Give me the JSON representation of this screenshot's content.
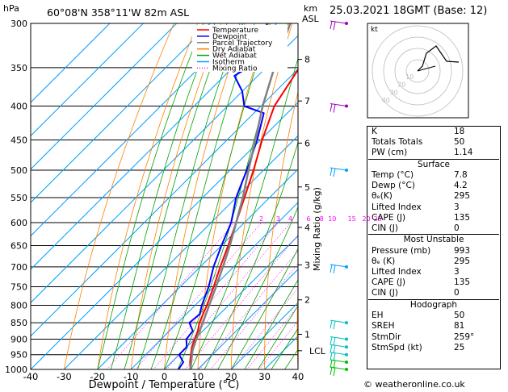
{
  "header": {
    "pressure_unit": "hPa",
    "location": "60°08'N  358°11'W  82m  ASL",
    "height_unit": "km",
    "height_unit2": "ASL",
    "datetime": "25.03.2021  18GMT  (Base: 12)"
  },
  "footer": {
    "copyright": "© weatheronline.co.uk"
  },
  "chart_data": {
    "type": "line",
    "title": "",
    "xlabel": "Dewpoint / Temperature (°C)",
    "ylabel_right": "Mixing Ratio (g/kg)",
    "xlim": [
      -40,
      40
    ],
    "ylim": [
      1000,
      300
    ],
    "y_scale": "log",
    "x_ticks": [
      -40,
      -30,
      -20,
      -10,
      0,
      10,
      20,
      30,
      40
    ],
    "y_ticks": [
      300,
      350,
      400,
      450,
      500,
      550,
      600,
      650,
      700,
      750,
      800,
      850,
      900,
      950,
      1000
    ],
    "km_ticks": [
      {
        "label": "8",
        "p": 340
      },
      {
        "label": "7",
        "p": 393
      },
      {
        "label": "6",
        "p": 455
      },
      {
        "label": "5",
        "p": 530
      },
      {
        "label": "4",
        "p": 610
      },
      {
        "label": "3",
        "p": 695
      },
      {
        "label": "2",
        "p": 785
      },
      {
        "label": "1",
        "p": 885
      },
      {
        "label": "LCL",
        "p": 937
      }
    ],
    "mixing_ratio_labels": [
      "2",
      "3",
      "4",
      "6",
      "8",
      "10",
      "15",
      "20",
      "25"
    ],
    "legend": [
      "Temperature",
      "Dewpoint",
      "Parcel Trajectory",
      "Dry Adiabat",
      "Wet Adiabat",
      "Isotherm",
      "Mixing Ratio"
    ],
    "legend_colors": [
      "#ff0000",
      "#0000ff",
      "#808080",
      "#ff8000",
      "#00a000",
      "#00a0ff",
      "#ff00ff"
    ],
    "series": [
      {
        "name": "Temperature",
        "p": [
          1000,
          975,
          950,
          925,
          900,
          875,
          850,
          800,
          750,
          700,
          650,
          600,
          550,
          500,
          450,
          400,
          350,
          300
        ],
        "t": [
          7.8,
          5.5,
          3.5,
          1.5,
          0.0,
          -1.5,
          -3.5,
          -6.5,
          -10.0,
          -14.0,
          -18.0,
          -22.5,
          -27.5,
          -33.0,
          -39.5,
          -46.0,
          -50.0,
          -54.0
        ]
      },
      {
        "name": "Dewpoint",
        "p": [
          1000,
          975,
          950,
          925,
          900,
          875,
          850,
          825,
          800,
          750,
          700,
          650,
          600,
          550,
          520,
          500,
          450,
          410,
          400,
          380,
          360,
          340,
          320,
          300
        ],
        "t": [
          4.2,
          3.5,
          0.0,
          0.0,
          -2.5,
          -3.0,
          -6.5,
          -6.0,
          -8.0,
          -11.5,
          -16.0,
          -20.0,
          -24.0,
          -30.0,
          -33.0,
          -35.0,
          -41.0,
          -47.0,
          -55.0,
          -60.0,
          -67.0,
          -64.0,
          -68.0,
          -73.0
        ]
      },
      {
        "name": "Parcel Trajectory",
        "p": [
          1000,
          937,
          900,
          850,
          800,
          750,
          700,
          650,
          600,
          550,
          500,
          450,
          400,
          350,
          300
        ],
        "t": [
          7.8,
          2.8,
          0.5,
          -2.5,
          -5.8,
          -9.3,
          -13.2,
          -17.5,
          -22.5,
          -28.0,
          -34.5,
          -41.5,
          -49.5,
          -57.5,
          -66.0
        ]
      }
    ]
  },
  "indices": {
    "rows": [
      {
        "label": "K",
        "value": "18"
      },
      {
        "label": "Totals Totals",
        "value": "50"
      },
      {
        "label": "PW (cm)",
        "value": "1.14"
      }
    ]
  },
  "surface": {
    "title": "Surface",
    "rows": [
      {
        "label": "Temp (°C)",
        "value": "7.8"
      },
      {
        "label": "Dewp (°C)",
        "value": "4.2"
      },
      {
        "label": "θₑ(K)",
        "value": "295"
      },
      {
        "label": "Lifted Index",
        "value": "3"
      },
      {
        "label": "CAPE (J)",
        "value": "135"
      },
      {
        "label": "CIN (J)",
        "value": "0"
      }
    ]
  },
  "unstable": {
    "title": "Most Unstable",
    "rows": [
      {
        "label": "Pressure (mb)",
        "value": "993"
      },
      {
        "label": "θₑ (K)",
        "value": "295"
      },
      {
        "label": "Lifted Index",
        "value": "3"
      },
      {
        "label": "CAPE (J)",
        "value": "135"
      },
      {
        "label": "CIN (J)",
        "value": "0"
      }
    ]
  },
  "hodograph": {
    "title": "Hodograph",
    "label": "kt",
    "ring_labels": [
      "10",
      "20",
      "30",
      "40"
    ],
    "rows": [
      {
        "label": "EH",
        "value": "50"
      },
      {
        "label": "SREH",
        "value": "81"
      },
      {
        "label": "StmDir",
        "value": "259°"
      },
      {
        "label": "StmSpd (kt)",
        "value": "25"
      }
    ]
  }
}
